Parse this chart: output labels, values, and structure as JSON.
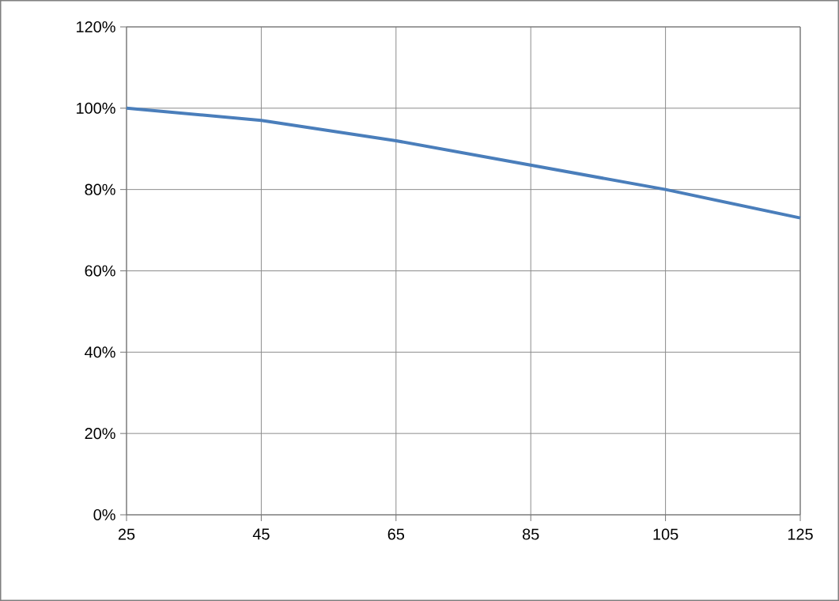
{
  "chart_data": {
    "type": "line",
    "x": [
      25,
      45,
      65,
      85,
      105,
      125
    ],
    "series": [
      {
        "color": "#4a7ebb",
        "values": [
          100,
          97,
          92,
          86,
          80,
          73
        ]
      }
    ],
    "xlim": [
      25,
      125
    ],
    "xticks": [
      25,
      45,
      65,
      85,
      105,
      125
    ],
    "ylim": [
      0,
      120
    ],
    "yticks": [
      {
        "value": 0,
        "label": "0%"
      },
      {
        "value": 20,
        "label": "20%"
      },
      {
        "value": 40,
        "label": "40%"
      },
      {
        "value": 60,
        "label": "60%"
      },
      {
        "value": 80,
        "label": "80%"
      },
      {
        "value": 100,
        "label": "100%"
      },
      {
        "value": 120,
        "label": "120%"
      }
    ],
    "grid": true,
    "marker": "none",
    "line_style": "solid"
  }
}
